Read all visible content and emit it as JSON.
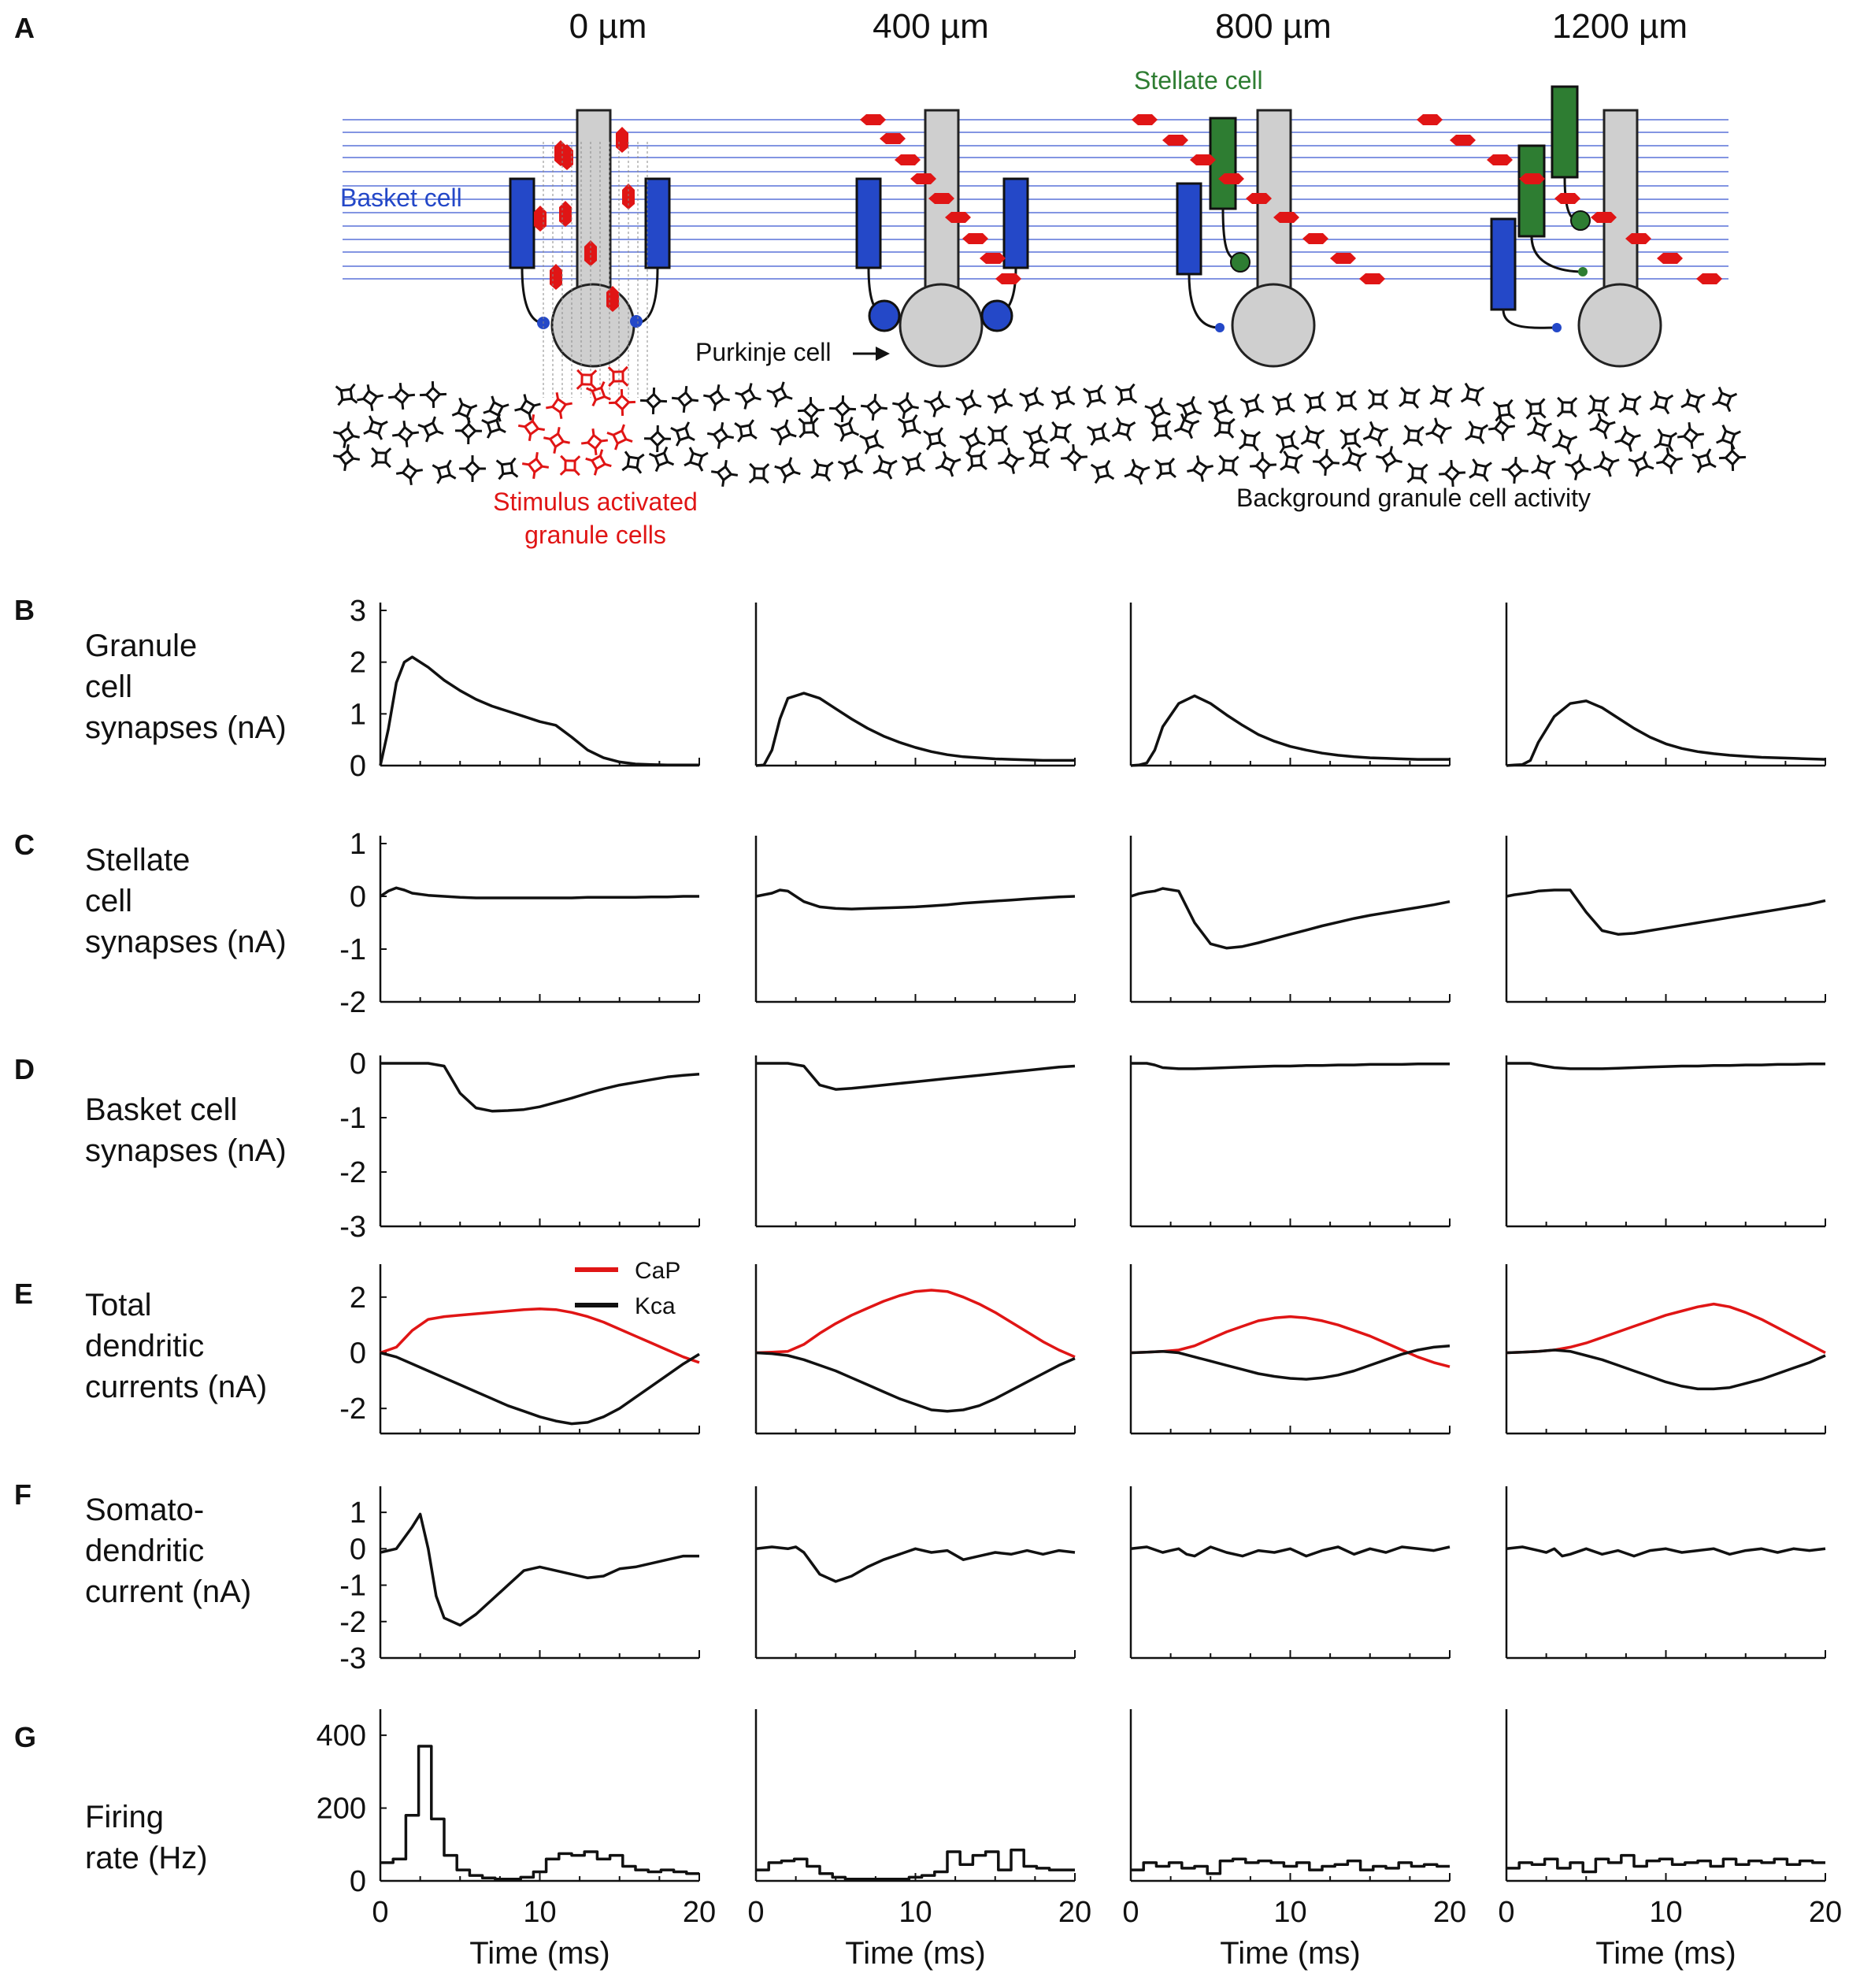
{
  "panel_letters": [
    "A",
    "B",
    "C",
    "D",
    "E",
    "F",
    "G"
  ],
  "columns": [
    "0 µm",
    "400 µm",
    "800 µm",
    "1200 µm"
  ],
  "diagram": {
    "stellate_label": "Stellate cell",
    "basket_label": "Basket cell",
    "purkinje_label": "Purkinje cell",
    "stimulus_label_line1": "Stimulus activated",
    "stimulus_label_line2": "granule cells",
    "background_label": "Background granule cell activity",
    "colors": {
      "basket": "#2448c8",
      "stellate": "#2e7d32",
      "purkinje": "#cfcfcf",
      "parallel_fiber": "#3d5bd6",
      "granule_stim": "#e01515",
      "granule_bg": "#111111",
      "spike": "#e01515"
    }
  },
  "rows": [
    {
      "letter": "B",
      "label_lines": [
        "Granule",
        "cell",
        "synapses (nA)"
      ]
    },
    {
      "letter": "C",
      "label_lines": [
        "Stellate",
        "cell",
        "synapses (nA)"
      ]
    },
    {
      "letter": "D",
      "label_lines": [
        "Basket cell",
        "synapses (nA)"
      ]
    },
    {
      "letter": "E",
      "label_lines": [
        "Total",
        "dendritic",
        "currents (nA)"
      ]
    },
    {
      "letter": "F",
      "label_lines": [
        "Somato-",
        "dendritic",
        "current (nA)"
      ]
    },
    {
      "letter": "G",
      "label_lines": [
        "Firing",
        "rate (Hz)"
      ]
    }
  ],
  "x_axis": {
    "title": "Time (ms)",
    "ticks": [
      "0",
      "10",
      "20"
    ],
    "range": [
      0,
      20
    ]
  },
  "chart_data": [
    {
      "type": "line",
      "row": "B",
      "title": "",
      "ylabel": "Granule cell synapses (nA)",
      "xlabel": "Time (ms)",
      "ylim": [
        0,
        3
      ],
      "yticks": [
        "3",
        "2",
        "1",
        "0"
      ],
      "x": [
        0,
        0.5,
        1,
        1.5,
        2,
        3,
        4,
        5,
        6,
        7,
        8,
        9,
        10,
        11,
        12,
        13,
        14,
        15,
        16,
        17,
        18,
        19,
        20
      ],
      "series": [
        {
          "column": "0 µm",
          "values": [
            0,
            0.7,
            1.6,
            2.0,
            2.1,
            1.9,
            1.65,
            1.45,
            1.28,
            1.15,
            1.05,
            0.95,
            0.85,
            0.78,
            0.55,
            0.3,
            0.15,
            0.07,
            0.03,
            0.02,
            0.01,
            0.01,
            0.01
          ]
        },
        {
          "column": "400 µm",
          "values": [
            0,
            0.01,
            0.3,
            0.9,
            1.3,
            1.4,
            1.3,
            1.1,
            0.9,
            0.72,
            0.57,
            0.45,
            0.35,
            0.27,
            0.21,
            0.17,
            0.15,
            0.13,
            0.12,
            0.11,
            0.1,
            0.1,
            0.1
          ]
        },
        {
          "column": "800 µm",
          "values": [
            0,
            0.01,
            0.05,
            0.3,
            0.75,
            1.2,
            1.35,
            1.2,
            0.98,
            0.78,
            0.6,
            0.47,
            0.37,
            0.3,
            0.24,
            0.2,
            0.17,
            0.15,
            0.14,
            0.13,
            0.12,
            0.12,
            0.12
          ]
        },
        {
          "column": "1200 µm",
          "values": [
            0,
            0.01,
            0.02,
            0.1,
            0.45,
            0.95,
            1.2,
            1.25,
            1.12,
            0.92,
            0.72,
            0.55,
            0.42,
            0.33,
            0.27,
            0.23,
            0.2,
            0.18,
            0.16,
            0.15,
            0.14,
            0.13,
            0.12
          ]
        }
      ]
    },
    {
      "type": "line",
      "row": "C",
      "title": "",
      "ylabel": "Stellate cell synapses (nA)",
      "xlabel": "Time (ms)",
      "ylim": [
        -2,
        1
      ],
      "yticks": [
        "1",
        "0",
        "-1",
        "-2"
      ],
      "x": [
        0,
        0.5,
        1,
        1.5,
        2,
        3,
        4,
        5,
        6,
        7,
        8,
        9,
        10,
        11,
        12,
        13,
        14,
        15,
        16,
        17,
        18,
        19,
        20
      ],
      "series": [
        {
          "column": "0 µm",
          "values": [
            0,
            0.1,
            0.16,
            0.12,
            0.06,
            0.02,
            0.0,
            -0.02,
            -0.03,
            -0.03,
            -0.03,
            -0.03,
            -0.03,
            -0.03,
            -0.03,
            -0.02,
            -0.02,
            -0.02,
            -0.02,
            -0.01,
            -0.01,
            0,
            0
          ]
        },
        {
          "column": "400 µm",
          "values": [
            0,
            0.03,
            0.06,
            0.12,
            0.1,
            -0.1,
            -0.2,
            -0.23,
            -0.24,
            -0.23,
            -0.22,
            -0.21,
            -0.2,
            -0.18,
            -0.16,
            -0.13,
            -0.11,
            -0.09,
            -0.07,
            -0.05,
            -0.03,
            -0.01,
            0
          ]
        },
        {
          "column": "800 µm",
          "values": [
            0,
            0.05,
            0.08,
            0.1,
            0.15,
            0.1,
            -0.5,
            -0.9,
            -0.98,
            -0.95,
            -0.88,
            -0.8,
            -0.72,
            -0.64,
            -0.56,
            -0.49,
            -0.42,
            -0.36,
            -0.31,
            -0.26,
            -0.21,
            -0.16,
            -0.1
          ]
        },
        {
          "column": "1200 µm",
          "values": [
            0,
            0.03,
            0.05,
            0.07,
            0.1,
            0.12,
            0.12,
            -0.3,
            -0.65,
            -0.72,
            -0.7,
            -0.65,
            -0.6,
            -0.55,
            -0.5,
            -0.45,
            -0.4,
            -0.35,
            -0.3,
            -0.25,
            -0.2,
            -0.15,
            -0.08
          ]
        }
      ]
    },
    {
      "type": "line",
      "row": "D",
      "title": "",
      "ylabel": "Basket cell synapses (nA)",
      "xlabel": "Time (ms)",
      "ylim": [
        -3,
        0
      ],
      "yticks": [
        "0",
        "-1",
        "-2",
        "-3"
      ],
      "x": [
        0,
        0.5,
        1,
        1.5,
        2,
        3,
        4,
        5,
        6,
        7,
        8,
        9,
        10,
        11,
        12,
        13,
        14,
        15,
        16,
        17,
        18,
        19,
        20
      ],
      "series": [
        {
          "column": "0 µm",
          "values": [
            0,
            0,
            0,
            0,
            0,
            0,
            -0.05,
            -0.55,
            -0.82,
            -0.88,
            -0.87,
            -0.85,
            -0.8,
            -0.72,
            -0.64,
            -0.55,
            -0.47,
            -0.4,
            -0.35,
            -0.3,
            -0.25,
            -0.22,
            -0.2
          ]
        },
        {
          "column": "400 µm",
          "values": [
            0,
            0,
            0,
            0,
            0,
            -0.05,
            -0.4,
            -0.48,
            -0.46,
            -0.43,
            -0.4,
            -0.37,
            -0.34,
            -0.31,
            -0.28,
            -0.25,
            -0.22,
            -0.19,
            -0.16,
            -0.13,
            -0.1,
            -0.07,
            -0.05
          ]
        },
        {
          "column": "800 µm",
          "values": [
            0,
            0,
            0,
            -0.03,
            -0.08,
            -0.1,
            -0.1,
            -0.09,
            -0.08,
            -0.07,
            -0.06,
            -0.05,
            -0.05,
            -0.04,
            -0.04,
            -0.03,
            -0.03,
            -0.02,
            -0.02,
            -0.02,
            -0.01,
            -0.01,
            -0.01
          ]
        },
        {
          "column": "1200 µm",
          "values": [
            0,
            0,
            0,
            0,
            -0.03,
            -0.08,
            -0.1,
            -0.1,
            -0.1,
            -0.09,
            -0.08,
            -0.07,
            -0.06,
            -0.05,
            -0.05,
            -0.04,
            -0.04,
            -0.03,
            -0.03,
            -0.02,
            -0.02,
            -0.01,
            -0.01
          ]
        }
      ]
    },
    {
      "type": "line",
      "row": "E",
      "title": "",
      "ylabel": "Total dendritic currents (nA)",
      "xlabel": "Time (ms)",
      "ylim": [
        -2.9,
        2.9
      ],
      "yticks": [
        "2",
        "0",
        "-2"
      ],
      "legend": [
        {
          "name": "CaP",
          "color": "#e01515"
        },
        {
          "name": "Kca",
          "color": "#111111"
        }
      ],
      "legend_position": "top-right of first panel",
      "x": [
        0,
        1,
        2,
        3,
        4,
        5,
        6,
        7,
        8,
        9,
        10,
        11,
        12,
        13,
        14,
        15,
        16,
        17,
        18,
        19,
        20
      ],
      "series": [
        {
          "column": "0 µm",
          "name": "CaP",
          "color": "#e01515",
          "values": [
            0,
            0.2,
            0.8,
            1.2,
            1.3,
            1.35,
            1.4,
            1.45,
            1.5,
            1.55,
            1.58,
            1.55,
            1.45,
            1.3,
            1.1,
            0.85,
            0.6,
            0.35,
            0.1,
            -0.15,
            -0.35
          ]
        },
        {
          "column": "0 µm",
          "name": "Kca",
          "color": "#111111",
          "values": [
            0,
            -0.15,
            -0.4,
            -0.65,
            -0.9,
            -1.15,
            -1.4,
            -1.65,
            -1.9,
            -2.1,
            -2.3,
            -2.45,
            -2.55,
            -2.5,
            -2.3,
            -2.0,
            -1.6,
            -1.2,
            -0.8,
            -0.4,
            -0.05
          ]
        },
        {
          "column": "400 µm",
          "name": "CaP",
          "color": "#e01515",
          "values": [
            0,
            0.02,
            0.05,
            0.3,
            0.7,
            1.05,
            1.35,
            1.6,
            1.85,
            2.05,
            2.2,
            2.25,
            2.2,
            2.0,
            1.75,
            1.45,
            1.1,
            0.75,
            0.4,
            0.1,
            -0.15
          ]
        },
        {
          "column": "400 µm",
          "name": "Kca",
          "color": "#111111",
          "values": [
            0,
            -0.03,
            -0.1,
            -0.25,
            -0.45,
            -0.65,
            -0.9,
            -1.15,
            -1.4,
            -1.65,
            -1.85,
            -2.05,
            -2.1,
            -2.05,
            -1.9,
            -1.65,
            -1.35,
            -1.05,
            -0.75,
            -0.45,
            -0.2
          ]
        },
        {
          "column": "800 µm",
          "name": "CaP",
          "color": "#e01515",
          "values": [
            0,
            0.02,
            0.05,
            0.1,
            0.25,
            0.5,
            0.75,
            0.95,
            1.15,
            1.25,
            1.3,
            1.25,
            1.15,
            1.0,
            0.8,
            0.6,
            0.35,
            0.1,
            -0.15,
            -0.35,
            -0.5
          ]
        },
        {
          "column": "800 µm",
          "name": "Kca",
          "color": "#111111",
          "values": [
            0,
            0.02,
            0.05,
            0.0,
            -0.15,
            -0.3,
            -0.45,
            -0.6,
            -0.75,
            -0.85,
            -0.92,
            -0.95,
            -0.9,
            -0.8,
            -0.65,
            -0.45,
            -0.25,
            -0.05,
            0.1,
            0.2,
            0.25
          ]
        },
        {
          "column": "1200 µm",
          "name": "CaP",
          "color": "#e01515",
          "values": [
            0,
            0.02,
            0.05,
            0.1,
            0.2,
            0.35,
            0.55,
            0.75,
            0.95,
            1.15,
            1.35,
            1.5,
            1.65,
            1.75,
            1.65,
            1.45,
            1.2,
            0.9,
            0.6,
            0.3,
            0.0
          ]
        },
        {
          "column": "1200 µm",
          "name": "Kca",
          "color": "#111111",
          "values": [
            0,
            0.02,
            0.05,
            0.1,
            0.05,
            -0.1,
            -0.25,
            -0.45,
            -0.65,
            -0.85,
            -1.05,
            -1.2,
            -1.3,
            -1.3,
            -1.25,
            -1.1,
            -0.95,
            -0.75,
            -0.55,
            -0.35,
            -0.1
          ]
        }
      ]
    },
    {
      "type": "line",
      "row": "F",
      "title": "",
      "ylabel": "Somato-dendritic current (nA)",
      "xlabel": "Time (ms)",
      "ylim": [
        -3,
        1.5
      ],
      "yticks": [
        "1",
        "0",
        "-1",
        "-2",
        "-3"
      ],
      "x": [
        0,
        1,
        2,
        2.5,
        3,
        3.5,
        4,
        5,
        6,
        7,
        8,
        9,
        10,
        11,
        12,
        13,
        14,
        15,
        16,
        17,
        18,
        19,
        20
      ],
      "series": [
        {
          "column": "0 µm",
          "values": [
            -0.1,
            0,
            0.6,
            0.95,
            0.0,
            -1.3,
            -1.9,
            -2.1,
            -1.8,
            -1.4,
            -1.0,
            -0.6,
            -0.5,
            -0.6,
            -0.7,
            -0.8,
            -0.75,
            -0.55,
            -0.5,
            -0.4,
            -0.3,
            -0.2,
            -0.2
          ]
        },
        {
          "column": "400 µm",
          "values": [
            0.0,
            0.05,
            0.0,
            0.05,
            -0.1,
            -0.4,
            -0.7,
            -0.9,
            -0.75,
            -0.5,
            -0.3,
            -0.15,
            0.0,
            -0.1,
            -0.05,
            -0.3,
            -0.2,
            -0.1,
            -0.15,
            -0.05,
            -0.15,
            -0.05,
            -0.1
          ]
        },
        {
          "column": "800 µm",
          "values": [
            0.0,
            0.05,
            -0.1,
            -0.05,
            0.0,
            -0.15,
            -0.2,
            0.05,
            -0.1,
            -0.2,
            -0.05,
            -0.1,
            0.0,
            -0.2,
            -0.05,
            0.05,
            -0.15,
            0.0,
            -0.1,
            0.05,
            0.0,
            -0.05,
            0.05
          ]
        },
        {
          "column": "1200 µm",
          "values": [
            0.0,
            0.05,
            -0.05,
            -0.1,
            0.0,
            -0.2,
            -0.15,
            0.0,
            -0.15,
            -0.05,
            -0.2,
            -0.05,
            0.0,
            -0.1,
            -0.05,
            0.0,
            -0.15,
            -0.05,
            0.0,
            -0.1,
            0.0,
            -0.05,
            0.0
          ]
        }
      ]
    },
    {
      "type": "line",
      "row": "G",
      "title": "",
      "ylabel": "Firing rate (Hz)",
      "xlabel": "Time (ms)",
      "ylim": [
        0,
        450
      ],
      "yticks": [
        "400",
        "200",
        "0"
      ],
      "step": true,
      "bin_width_ms": 0.8,
      "series": [
        {
          "column": "0 µm",
          "values": [
            50,
            60,
            180,
            370,
            170,
            70,
            30,
            15,
            8,
            5,
            5,
            10,
            25,
            60,
            75,
            70,
            80,
            60,
            70,
            40,
            30,
            25,
            30,
            25,
            20
          ]
        },
        {
          "column": "400 µm",
          "values": [
            30,
            50,
            55,
            60,
            40,
            20,
            10,
            5,
            5,
            5,
            5,
            5,
            10,
            15,
            25,
            80,
            45,
            70,
            80,
            30,
            85,
            40,
            35,
            30,
            30
          ]
        },
        {
          "column": "800 µm",
          "values": [
            30,
            50,
            40,
            50,
            35,
            40,
            20,
            55,
            60,
            50,
            55,
            50,
            40,
            50,
            30,
            40,
            45,
            55,
            30,
            40,
            35,
            50,
            40,
            45,
            40
          ]
        },
        {
          "column": "1200 µm",
          "values": [
            35,
            50,
            45,
            60,
            35,
            50,
            25,
            60,
            50,
            70,
            40,
            55,
            60,
            45,
            50,
            55,
            40,
            60,
            45,
            55,
            50,
            60,
            45,
            55,
            50
          ]
        }
      ]
    }
  ]
}
